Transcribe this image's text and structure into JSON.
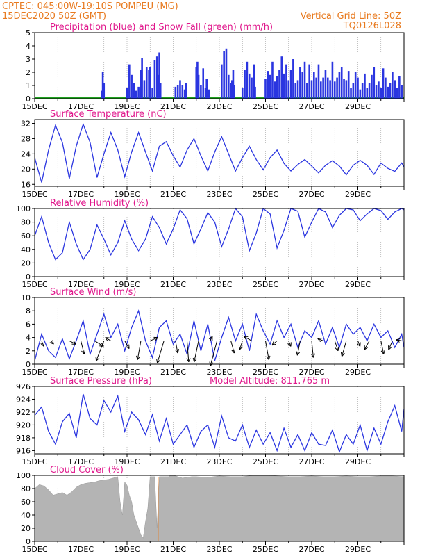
{
  "header": {
    "line1": "CPTEC:   045:00W-19:10S   POMPEU (MG)",
    "line2": "15DEC2020 50Z (GMT)",
    "grid_note": "Vertical Grid Line: 50Z",
    "run_id": "TQ0126L028"
  },
  "colors": {
    "header": "#e87a1f",
    "title": "#e0188c",
    "line": "#2a35e0",
    "bar": "#2a35e0",
    "snow": "#1fa01f",
    "cloud": "#b4b4b4"
  },
  "x_labels": [
    "15DEC",
    "17DEC",
    "19DEC",
    "21DEC",
    "23DEC",
    "25DEC",
    "27DEC",
    "29DEC"
  ],
  "chart_data": [
    {
      "id": "precip",
      "type": "bar",
      "title": "Precipitation (blue) and Snow Fall (green) (mm/h)",
      "ylim": [
        0,
        5
      ],
      "yticks": [
        0,
        1,
        2,
        3,
        4,
        5
      ],
      "x_days": [
        0,
        16
      ],
      "series": [
        {
          "name": "Precipitation",
          "x": [
            2.9,
            2.95,
            3.0,
            4.0,
            4.1,
            4.2,
            4.3,
            4.4,
            4.5,
            4.6,
            4.65,
            4.75,
            4.85,
            4.95,
            5.0,
            5.1,
            5.2,
            5.3,
            5.35,
            5.4,
            5.45,
            6.1,
            6.2,
            6.3,
            6.4,
            6.5,
            6.55,
            7.0,
            7.05,
            7.1,
            7.2,
            7.3,
            7.4,
            7.45,
            7.55,
            8.1,
            8.2,
            8.3,
            8.4,
            8.5,
            8.55,
            8.6,
            8.65,
            9.0,
            9.1,
            9.2,
            9.3,
            9.4,
            9.5,
            9.55,
            10.0,
            10.1,
            10.2,
            10.3,
            10.4,
            10.5,
            10.6,
            10.7,
            10.8,
            10.9,
            11.0,
            11.1,
            11.2,
            11.3,
            11.4,
            11.5,
            11.6,
            11.7,
            11.8,
            11.9,
            12.0,
            12.1,
            12.2,
            12.3,
            12.4,
            12.5,
            12.6,
            12.7,
            12.8,
            12.9,
            13.0,
            13.1,
            13.2,
            13.3,
            13.4,
            13.5,
            13.6,
            13.7,
            13.8,
            13.9,
            14.0,
            14.1,
            14.2,
            14.3,
            14.4,
            14.5,
            14.6,
            14.7,
            14.8,
            14.9,
            15.0,
            15.1,
            15.2,
            15.3,
            15.4,
            15.5,
            15.6,
            15.7,
            15.8,
            15.9
          ],
          "values": [
            0.6,
            2.0,
            1.2,
            0.8,
            2.6,
            1.8,
            1.2,
            0.6,
            0.9,
            2.2,
            3.1,
            1.4,
            2.4,
            2.2,
            2.4,
            0.8,
            2.9,
            3.2,
            1.8,
            3.5,
            1.2,
            0.9,
            1.0,
            1.4,
            1.0,
            0.7,
            1.2,
            2.4,
            2.8,
            1.8,
            1.0,
            2.3,
            0.8,
            1.5,
            0.7,
            2.6,
            3.6,
            3.8,
            1.8,
            1.2,
            1.4,
            2.2,
            1.0,
            0.8,
            2.2,
            2.8,
            1.9,
            1.6,
            2.6,
            0.9,
            1.5,
            2.1,
            1.8,
            2.8,
            1.3,
            1.7,
            2.2,
            3.2,
            1.9,
            2.6,
            1.4,
            2.2,
            3.0,
            1.2,
            1.4,
            2.4,
            2.0,
            2.8,
            1.2,
            2.6,
            1.4,
            2.0,
            1.6,
            2.6,
            1.3,
            1.6,
            2.2,
            1.6,
            1.4,
            2.8,
            1.3,
            1.6,
            2.0,
            2.4,
            1.5,
            1.4,
            2.1,
            0.8,
            1.2,
            2.0,
            1.6,
            0.7,
            1.2,
            1.9,
            0.8,
            1.2,
            1.8,
            2.4,
            1.0,
            1.3,
            0.8,
            2.3,
            1.6,
            0.9,
            1.2,
            2.0,
            1.4,
            0.8,
            1.7,
            1.0
          ]
        },
        {
          "name": "Snow Fall",
          "x": [],
          "values": []
        }
      ]
    },
    {
      "id": "temp",
      "type": "line",
      "title": "Surface Temperature (nC)",
      "ylim": [
        15.5,
        33
      ],
      "yticks": [
        16,
        20,
        24,
        28,
        32
      ],
      "x_days": [
        0,
        16
      ],
      "series": [
        {
          "x": [
            0,
            0.3,
            0.6,
            0.9,
            1.2,
            1.5,
            1.8,
            2.1,
            2.4,
            2.7,
            3.0,
            3.3,
            3.6,
            3.9,
            4.2,
            4.5,
            4.8,
            5.1,
            5.4,
            5.7,
            6.0,
            6.3,
            6.6,
            6.9,
            7.2,
            7.5,
            7.8,
            8.1,
            8.4,
            8.7,
            9.0,
            9.3,
            9.6,
            9.9,
            10.2,
            10.5,
            10.8,
            11.1,
            11.4,
            11.7,
            12.0,
            12.3,
            12.6,
            12.9,
            13.2,
            13.5,
            13.8,
            14.1,
            14.4,
            14.7,
            15.0,
            15.3,
            15.6,
            15.9,
            16.0
          ],
          "values": [
            23.0,
            16.5,
            25.0,
            31.5,
            27.0,
            17.5,
            26.0,
            31.8,
            27.0,
            17.8,
            24.0,
            29.6,
            25.0,
            18.0,
            24.5,
            29.6,
            24.5,
            19.5,
            26.0,
            27.2,
            23.5,
            20.5,
            25.0,
            28.0,
            23.5,
            19.5,
            24.5,
            28.5,
            24.0,
            19.5,
            23.0,
            26.0,
            22.5,
            19.8,
            23.0,
            25.0,
            21.5,
            19.5,
            21.2,
            22.5,
            20.8,
            19.0,
            21.0,
            22.2,
            20.8,
            18.5,
            21.0,
            22.3,
            21.0,
            18.6,
            21.6,
            20.2,
            19.4,
            21.6,
            20.6
          ]
        }
      ]
    },
    {
      "id": "rh",
      "type": "line",
      "title": "Relative Humidity (%)",
      "ylim": [
        0,
        100
      ],
      "yticks": [
        0,
        20,
        40,
        60,
        80,
        100
      ],
      "x_days": [
        0,
        16
      ],
      "series": [
        {
          "x": [
            0,
            0.3,
            0.6,
            0.9,
            1.2,
            1.5,
            1.8,
            2.1,
            2.4,
            2.7,
            3.0,
            3.3,
            3.6,
            3.9,
            4.2,
            4.5,
            4.8,
            5.1,
            5.4,
            5.7,
            6.0,
            6.3,
            6.6,
            6.9,
            7.2,
            7.5,
            7.8,
            8.1,
            8.4,
            8.7,
            9.0,
            9.3,
            9.6,
            9.9,
            10.2,
            10.5,
            10.8,
            11.1,
            11.4,
            11.7,
            12.0,
            12.3,
            12.6,
            12.9,
            13.2,
            13.5,
            13.8,
            14.1,
            14.4,
            14.7,
            15.0,
            15.3,
            15.6,
            15.9,
            16.0
          ],
          "values": [
            60,
            88,
            50,
            25,
            35,
            80,
            48,
            25,
            40,
            76,
            55,
            32,
            50,
            82,
            55,
            38,
            55,
            88,
            72,
            48,
            70,
            98,
            85,
            48,
            70,
            94,
            80,
            44,
            70,
            100,
            88,
            38,
            64,
            100,
            92,
            42,
            68,
            100,
            96,
            58,
            80,
            100,
            95,
            72,
            90,
            100,
            98,
            82,
            92,
            100,
            97,
            84,
            95,
            100,
            98
          ]
        }
      ]
    },
    {
      "id": "wind",
      "type": "line",
      "title": "Surface Wind (m/s)",
      "ylim": [
        0,
        10
      ],
      "yticks": [
        0,
        2,
        4,
        6,
        8,
        10
      ],
      "x_days": [
        0,
        16
      ],
      "series": [
        {
          "x": [
            0,
            0.3,
            0.6,
            0.9,
            1.2,
            1.5,
            1.8,
            2.1,
            2.4,
            2.7,
            3.0,
            3.3,
            3.6,
            3.9,
            4.2,
            4.5,
            4.8,
            5.1,
            5.4,
            5.7,
            6.0,
            6.3,
            6.6,
            6.9,
            7.2,
            7.5,
            7.8,
            8.1,
            8.4,
            8.7,
            9.0,
            9.3,
            9.6,
            9.9,
            10.2,
            10.5,
            10.8,
            11.1,
            11.4,
            11.7,
            12.0,
            12.3,
            12.6,
            12.9,
            13.2,
            13.5,
            13.8,
            14.1,
            14.4,
            14.7,
            15.0,
            15.3,
            15.6,
            15.9,
            16.0
          ],
          "values": [
            0.5,
            4.5,
            2.0,
            1.0,
            3.8,
            0.8,
            3.5,
            6.5,
            1.5,
            4.5,
            7.5,
            4.0,
            6.0,
            2.0,
            5.5,
            8.0,
            3.5,
            1.0,
            5.5,
            6.5,
            3.0,
            4.5,
            1.5,
            6.5,
            2.0,
            6.0,
            0.5,
            4.0,
            7.0,
            3.5,
            6.0,
            2.0,
            7.5,
            5.0,
            3.0,
            6.5,
            4.0,
            6.0,
            2.5,
            5.0,
            4.0,
            6.5,
            3.0,
            5.5,
            2.5,
            6.0,
            4.5,
            5.5,
            3.5,
            6.0,
            4.0,
            5.0,
            2.5,
            4.5,
            2.5
          ]
        }
      ],
      "vectors": {
        "x": [
          0.3,
          0.7,
          1.5,
          2.0,
          2.6,
          3.0,
          3.3,
          3.9,
          4.6,
          5.0,
          5.6,
          6.1,
          6.6,
          7.1,
          7.6,
          7.9,
          8.5,
          9.0,
          9.4,
          10.0,
          10.5,
          11.0,
          11.5,
          12.0,
          12.5,
          13.0,
          13.5,
          14.0,
          14.5,
          15.0,
          15.5,
          15.9
        ],
        "u": [
          0.4,
          0.5,
          1.2,
          0.6,
          1.6,
          -1.4,
          -1.0,
          0.8,
          -0.6,
          1.4,
          -1.2,
          0.4,
          0.3,
          -0.8,
          0.4,
          -1.2,
          0.6,
          -0.5,
          -1.4,
          0.6,
          -0.9,
          0.4,
          -0.5,
          0.3,
          -1.0,
          0.6,
          -0.8,
          0.4,
          -0.9,
          0.5,
          -0.7,
          -1.0
        ],
        "v": [
          1.0,
          0.6,
          0.6,
          2.4,
          1.0,
          3.6,
          -0.6,
          1.4,
          3.4,
          -0.6,
          4.0,
          2.2,
          3.8,
          3.8,
          -0.8,
          4.5,
          2.2,
          1.6,
          -0.8,
          3.4,
          0.8,
          1.0,
          2.6,
          3.0,
          -0.4,
          1.8,
          2.8,
          1.0,
          1.6,
          2.4,
          1.6,
          -0.2
        ]
      }
    },
    {
      "id": "pres",
      "type": "line",
      "title": "Surface Pressure (hPa)",
      "annotation": "Model Altitude: 811.765 m",
      "ylim": [
        915.5,
        926
      ],
      "yticks": [
        916,
        918,
        920,
        922,
        924,
        926
      ],
      "x_days": [
        0,
        16
      ],
      "series": [
        {
          "x": [
            0,
            0.3,
            0.6,
            0.9,
            1.2,
            1.5,
            1.8,
            2.1,
            2.4,
            2.7,
            3.0,
            3.3,
            3.6,
            3.9,
            4.2,
            4.5,
            4.8,
            5.1,
            5.4,
            5.7,
            6.0,
            6.3,
            6.6,
            6.9,
            7.2,
            7.5,
            7.8,
            8.1,
            8.4,
            8.7,
            9.0,
            9.3,
            9.6,
            9.9,
            10.2,
            10.5,
            10.8,
            11.1,
            11.4,
            11.7,
            12.0,
            12.3,
            12.6,
            12.9,
            13.2,
            13.5,
            13.8,
            14.1,
            14.4,
            14.7,
            15.0,
            15.3,
            15.6,
            15.9,
            16.0
          ],
          "values": [
            921.5,
            922.8,
            919.0,
            917.0,
            920.5,
            921.8,
            918.0,
            924.8,
            921.0,
            920.0,
            923.8,
            922.0,
            924.5,
            919.0,
            922.0,
            920.8,
            918.5,
            921.6,
            917.5,
            921.0,
            917.0,
            918.5,
            920.0,
            916.5,
            919.0,
            920.0,
            916.5,
            921.4,
            918.0,
            917.5,
            920.0,
            916.5,
            919.2,
            917.0,
            918.8,
            916.0,
            919.5,
            916.5,
            918.5,
            916.0,
            918.8,
            917.0,
            916.8,
            919.2,
            915.8,
            918.5,
            917.0,
            920.0,
            916.0,
            919.5,
            917.0,
            920.5,
            923.0,
            919.0,
            922.5
          ]
        }
      ]
    },
    {
      "id": "cloud",
      "type": "area",
      "title": "Cloud Cover (%)",
      "ylim": [
        0,
        100
      ],
      "yticks": [
        0,
        20,
        40,
        60,
        80,
        100
      ],
      "x_days": [
        0,
        16
      ],
      "series": [
        {
          "x": [
            0,
            0.2,
            0.4,
            0.6,
            0.8,
            1.0,
            1.2,
            1.4,
            1.6,
            1.8,
            2.0,
            2.2,
            2.4,
            2.6,
            2.8,
            3.0,
            3.2,
            3.4,
            3.6,
            3.7,
            3.8,
            3.9,
            4.0,
            4.1,
            4.2,
            4.3,
            4.4,
            4.5,
            4.6,
            4.7,
            4.8,
            4.9,
            5.0,
            5.1,
            5.2,
            5.3,
            5.4,
            5.6,
            5.8,
            5.9,
            6.0,
            6.2,
            6.4,
            6.6,
            6.8,
            7.0,
            7.5,
            8.0,
            8.5,
            9.0,
            9.5,
            10.0,
            10.5,
            11.0,
            11.5,
            12.0,
            12.5,
            13.0,
            13.5,
            14.0,
            14.5,
            15.0,
            15.5,
            16.0
          ],
          "values": [
            80,
            86,
            84,
            78,
            70,
            72,
            74,
            70,
            75,
            82,
            86,
            88,
            89,
            90,
            92,
            93,
            94,
            96,
            98,
            60,
            40,
            90,
            85,
            70,
            60,
            40,
            30,
            20,
            10,
            5,
            30,
            50,
            98,
            98,
            98,
            20,
            98,
            98,
            98,
            100,
            100,
            98,
            96,
            97,
            98,
            98,
            97,
            99,
            98,
            98,
            100,
            100,
            99,
            98,
            98,
            99,
            98,
            98,
            99,
            98,
            98,
            99,
            99,
            98
          ]
        }
      ]
    }
  ]
}
